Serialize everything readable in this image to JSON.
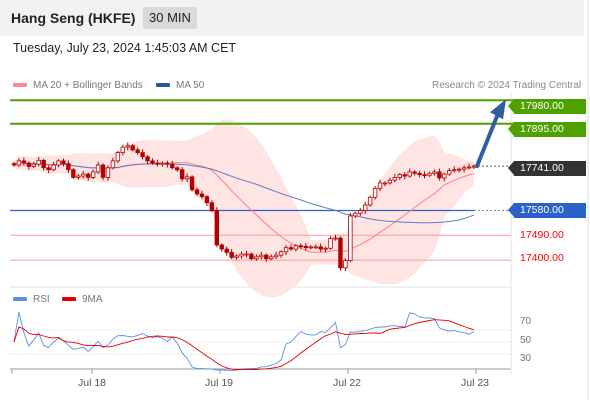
{
  "header": {
    "title": "Hang Seng (HKFE)",
    "timeframe": "30 MIN",
    "datetime": "Tuesday, July 23, 2024 1:45:03 AM CET"
  },
  "legend": {
    "ma20": "MA 20 + Bollinger Bands",
    "ma50": "MA 50",
    "copyright": "Research © 2024 Trading Central"
  },
  "colors": {
    "resistance": "#4fa100",
    "pivot": "#2a62c9",
    "support": "#ff0000",
    "current": "#333333",
    "bollinger_fill": "#ffe4e4",
    "ma20": "#ff8080",
    "ma50": "#5b7fc4",
    "candle": "#b30000",
    "arrow": "#2f5f9f",
    "rsi": "#5b8fe6",
    "rsi_ma": "#e60000"
  },
  "levels": {
    "r2": "17980.00",
    "r1": "17895.00",
    "current": "17741.00",
    "pivot": "17580.00",
    "s1": "17490.00",
    "s2": "17400.00"
  },
  "rsi": {
    "label": "RSI",
    "ma_label": "9MA",
    "ticks": [
      "70",
      "50",
      "30"
    ]
  },
  "x_axis": {
    "ticks": [
      "Jul 18",
      "Jul 19",
      "Jul 22",
      "Jul 23"
    ]
  },
  "chart_data": {
    "type": "candlestick",
    "title": "Hang Seng (HKFE)",
    "timeframe": "30 MIN",
    "x_ticks": [
      "Jul 18",
      "Jul 19",
      "Jul 22",
      "Jul 23"
    ],
    "ylim": [
      17335,
      18010
    ],
    "closes": [
      17745,
      17760,
      17752,
      17740,
      17748,
      17762,
      17735,
      17728,
      17745,
      17760,
      17750,
      17728,
      17700,
      17705,
      17712,
      17700,
      17720,
      17745,
      17700,
      17735,
      17760,
      17790,
      17810,
      17815,
      17800,
      17790,
      17775,
      17760,
      17752,
      17748,
      17752,
      17748,
      17735,
      17728,
      17695,
      17702,
      17655,
      17640,
      17630,
      17608,
      17580,
      17455,
      17440,
      17428,
      17410,
      17415,
      17422,
      17422,
      17405,
      17412,
      17418,
      17405,
      17412,
      17418,
      17430,
      17445,
      17440,
      17452,
      17450,
      17445,
      17448,
      17448,
      17440,
      17443,
      17478,
      17480,
      17372,
      17398,
      17560,
      17570,
      17580,
      17600,
      17628,
      17660,
      17680,
      17680,
      17690,
      17700,
      17710,
      17705,
      17720,
      17715,
      17710,
      17708,
      17715,
      17720,
      17698,
      17712,
      17725,
      17728,
      17730,
      17735,
      17738,
      17741
    ],
    "levels": {
      "resistance": [
        17980,
        17895
      ],
      "current": 17741,
      "pivot": 17580,
      "support": [
        17490,
        17400
      ]
    },
    "rsi": {
      "ticks": [
        70,
        50,
        30
      ]
    }
  }
}
